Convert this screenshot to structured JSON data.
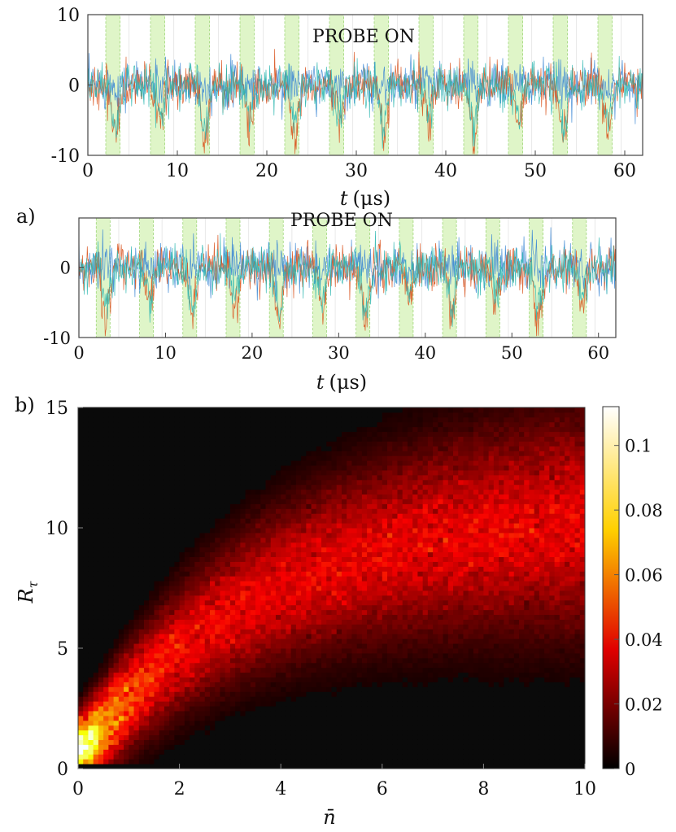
{
  "chart_data": [
    {
      "type": "line",
      "annotation": "PROBE ON",
      "xlabel_var": "t",
      "xlabel_unit": "(μs)",
      "xlim": [
        0,
        62
      ],
      "ylim": [
        -10,
        10
      ],
      "xticks": [
        "0",
        "10",
        "20",
        "30",
        "40",
        "50",
        "60"
      ],
      "yticks": [
        "10",
        "0",
        "-10"
      ],
      "probe_windows": [
        [
          2,
          3.6
        ],
        [
          7,
          8.6
        ],
        [
          12,
          13.6
        ],
        [
          17,
          18.6
        ],
        [
          22,
          23.6
        ],
        [
          27,
          28.6
        ],
        [
          32,
          33.6
        ],
        [
          37,
          38.6
        ],
        [
          42,
          43.6
        ],
        [
          47,
          48.6
        ],
        [
          52,
          53.6
        ],
        [
          57,
          58.6
        ]
      ],
      "series_colors": [
        "#3a86d4",
        "#d9531e",
        "#2fb7b0"
      ]
    },
    {
      "type": "line",
      "annotation": "PROBE ON",
      "panel_label": "a)",
      "xlabel_var": "t",
      "xlabel_unit": "(μs)",
      "xlim": [
        0,
        62
      ],
      "ylim": [
        -10,
        7
      ],
      "xticks": [
        "0",
        "10",
        "20",
        "30",
        "40",
        "50",
        "60"
      ],
      "yticks": [
        "0",
        "-10"
      ],
      "probe_windows": [
        [
          2,
          3.6
        ],
        [
          7,
          8.6
        ],
        [
          12,
          13.6
        ],
        [
          17,
          18.6
        ],
        [
          22,
          23.6
        ],
        [
          27,
          28.6
        ],
        [
          32,
          33.6
        ],
        [
          37,
          38.6
        ],
        [
          42,
          43.6
        ],
        [
          47,
          48.6
        ],
        [
          52,
          53.6
        ],
        [
          57,
          58.6
        ]
      ],
      "series_colors": [
        "#3a86d4",
        "#d9531e",
        "#2fb7b0"
      ]
    },
    {
      "type": "heatmap",
      "panel_label": "b)",
      "xlabel": "n̄",
      "ylabel_var": "R",
      "ylabel_sub": "τ",
      "xlim": [
        0,
        10
      ],
      "ylim": [
        0,
        15
      ],
      "xticks": [
        "0",
        "2",
        "4",
        "6",
        "8",
        "10"
      ],
      "yticks": [
        "0",
        "5",
        "10",
        "15"
      ],
      "colorbar": {
        "min": 0,
        "max": 0.112,
        "ticks": [
          "0",
          "0.02",
          "0.04",
          "0.06",
          "0.08",
          "0.1"
        ],
        "colormap": "hot"
      }
    }
  ]
}
